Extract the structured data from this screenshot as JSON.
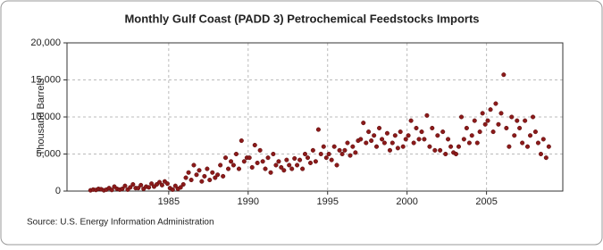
{
  "chart_data": {
    "type": "scatter",
    "title": "Monthly Gulf Coast (PADD 3) Petrochemical Feedstocks Imports",
    "y_label": "Thousand Barrels",
    "source": "Source: U.S. Energy Information Administration",
    "color": "#8b1a1a",
    "grid": true,
    "xlim": [
      1978.6,
      2009.8
    ],
    "ylim": [
      0,
      20000
    ],
    "xticks": [
      1985,
      1990,
      1995,
      2000,
      2005
    ],
    "yticks": [
      0,
      {
        "value": 5000,
        "label": "5,000"
      },
      {
        "value": 10000,
        "label": "10,000"
      },
      {
        "value": 15000,
        "label": "15,000"
      },
      {
        "value": 20000,
        "label": "20,000"
      }
    ],
    "x": [
      1980.08,
      1980.25,
      1980.42,
      1980.58,
      1980.75,
      1980.92,
      1981.08,
      1981.25,
      1981.42,
      1981.58,
      1981.75,
      1981.92,
      1982.08,
      1982.25,
      1982.42,
      1982.58,
      1982.75,
      1982.92,
      1983.08,
      1983.25,
      1983.42,
      1983.58,
      1983.75,
      1983.92,
      1984.08,
      1984.25,
      1984.42,
      1984.58,
      1984.75,
      1984.92,
      1985.08,
      1985.25,
      1985.42,
      1985.58,
      1985.75,
      1985.92,
      1986.08,
      1986.25,
      1986.42,
      1986.58,
      1986.75,
      1986.92,
      1987.08,
      1987.25,
      1987.42,
      1987.58,
      1987.75,
      1987.92,
      1988.08,
      1988.25,
      1988.42,
      1988.58,
      1988.75,
      1988.92,
      1989.08,
      1989.25,
      1989.42,
      1989.58,
      1989.75,
      1989.92,
      1990.08,
      1990.25,
      1990.42,
      1990.58,
      1990.75,
      1990.92,
      1991.08,
      1991.25,
      1991.42,
      1991.58,
      1991.75,
      1991.92,
      1992.08,
      1992.25,
      1992.42,
      1992.58,
      1992.75,
      1992.92,
      1993.08,
      1993.25,
      1993.42,
      1993.58,
      1993.75,
      1993.92,
      1994.08,
      1994.25,
      1994.42,
      1994.58,
      1994.75,
      1994.92,
      1995.08,
      1995.25,
      1995.42,
      1995.58,
      1995.75,
      1995.92,
      1996.08,
      1996.25,
      1996.42,
      1996.58,
      1996.75,
      1996.92,
      1997.08,
      1997.25,
      1997.42,
      1997.58,
      1997.75,
      1997.92,
      1998.08,
      1998.25,
      1998.42,
      1998.58,
      1998.75,
      1998.92,
      1999.08,
      1999.25,
      1999.42,
      1999.58,
      1999.75,
      1999.92,
      2000.08,
      2000.25,
      2000.42,
      2000.58,
      2000.75,
      2000.92,
      2001.08,
      2001.25,
      2001.42,
      2001.58,
      2001.75,
      2001.92,
      2002.08,
      2002.25,
      2002.42,
      2002.58,
      2002.75,
      2002.92,
      2003.08,
      2003.25,
      2003.42,
      2003.58,
      2003.75,
      2003.92,
      2004.08,
      2004.25,
      2004.42,
      2004.58,
      2004.75,
      2004.92,
      2005.08,
      2005.25,
      2005.42,
      2005.58,
      2005.75,
      2005.92,
      2006.08,
      2006.25,
      2006.42,
      2006.58,
      2006.75,
      2006.92,
      2007.08,
      2007.25,
      2007.42,
      2007.58,
      2007.75,
      2007.92,
      2008.08,
      2008.25,
      2008.42,
      2008.58,
      2008.75,
      2008.92
    ],
    "values": [
      100,
      200,
      150,
      300,
      250,
      100,
      200,
      400,
      150,
      600,
      300,
      200,
      300,
      700,
      200,
      500,
      900,
      400,
      400,
      800,
      300,
      600,
      500,
      1000,
      600,
      900,
      1200,
      800,
      1300,
      1000,
      400,
      200,
      700,
      300,
      500,
      900,
      1800,
      2500,
      1500,
      3500,
      2200,
      2800,
      1300,
      2000,
      3000,
      1500,
      2500,
      1800,
      2200,
      3500,
      2000,
      4500,
      3000,
      4000,
      3500,
      5000,
      3000,
      6800,
      4000,
      4500,
      4500,
      3200,
      6200,
      3800,
      5500,
      4000,
      3000,
      4500,
      2500,
      5000,
      3500,
      4000,
      3200,
      2800,
      4200,
      3500,
      3000,
      4400,
      3500,
      4200,
      3000,
      5000,
      4500,
      3800,
      5500,
      4000,
      8300,
      5000,
      6000,
      4500,
      5000,
      4200,
      6000,
      3500,
      5500,
      5000,
      5500,
      6500,
      4800,
      6000,
      5200,
      6800,
      7000,
      9200,
      6500,
      8000,
      6800,
      7500,
      6000,
      8500,
      7000,
      6500,
      7800,
      5500,
      6500,
      7500,
      5800,
      8000,
      6000,
      7000,
      7500,
      9500,
      6500,
      8500,
      7000,
      8000,
      7000,
      10200,
      6000,
      8500,
      5500,
      7500,
      5500,
      8000,
      5000,
      7000,
      6000,
      5200,
      5000,
      6000,
      10000,
      7000,
      8500,
      6500,
      7500,
      9500,
      6500,
      8000,
      10500,
      9000,
      9500,
      11000,
      8000,
      11800,
      9000,
      10500,
      15700,
      8500,
      6000,
      10000,
      7500,
      9500,
      8500,
      6500,
      9500,
      6000,
      7500,
      10000,
      8000,
      6500,
      5000,
      7000,
      4500,
      6000
    ]
  }
}
